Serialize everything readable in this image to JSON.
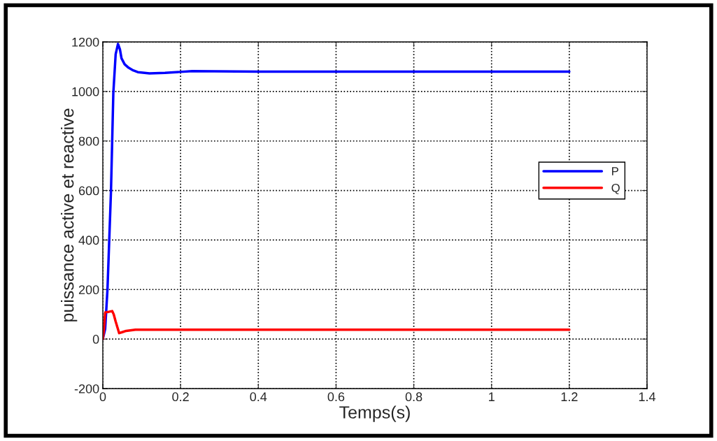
{
  "chart_data": {
    "type": "line",
    "xlabel": "Temps(s)",
    "ylabel": "puissance active et reactive",
    "xlim": [
      0,
      1.4
    ],
    "xticks": [
      0,
      0.2,
      0.4,
      0.6,
      0.8,
      1,
      1.2,
      1.4
    ],
    "ylim": [
      -200,
      1200
    ],
    "yticks": [
      -200,
      0,
      200,
      400,
      600,
      800,
      1000,
      1200
    ],
    "grid": true,
    "legend": "right",
    "line_style": "solid",
    "marker": "none",
    "series": [
      {
        "name": "P",
        "color": "#0000ff",
        "x": [
          0,
          0.006,
          0.012,
          0.021,
          0.027,
          0.033,
          0.039,
          0.044,
          0.048,
          0.056,
          0.066,
          0.078,
          0.09,
          0.12,
          0.16,
          0.23,
          0.4,
          0.8,
          1.2
        ],
        "values": [
          0,
          40,
          202,
          598,
          993,
          1150,
          1192,
          1170,
          1134,
          1110,
          1096,
          1085,
          1078,
          1073,
          1075,
          1082,
          1080,
          1080,
          1080
        ]
      },
      {
        "name": "Q",
        "color": "#ff0000",
        "x": [
          0,
          0.003,
          0.006,
          0.015,
          0.024,
          0.028,
          0.033,
          0.038,
          0.042,
          0.05,
          0.06,
          0.084,
          0.12,
          0.4,
          0.8,
          1.2
        ],
        "values": [
          0,
          40,
          108,
          110,
          113,
          100,
          71,
          45,
          24,
          28,
          33,
          38,
          38,
          38,
          38,
          38
        ]
      }
    ]
  }
}
